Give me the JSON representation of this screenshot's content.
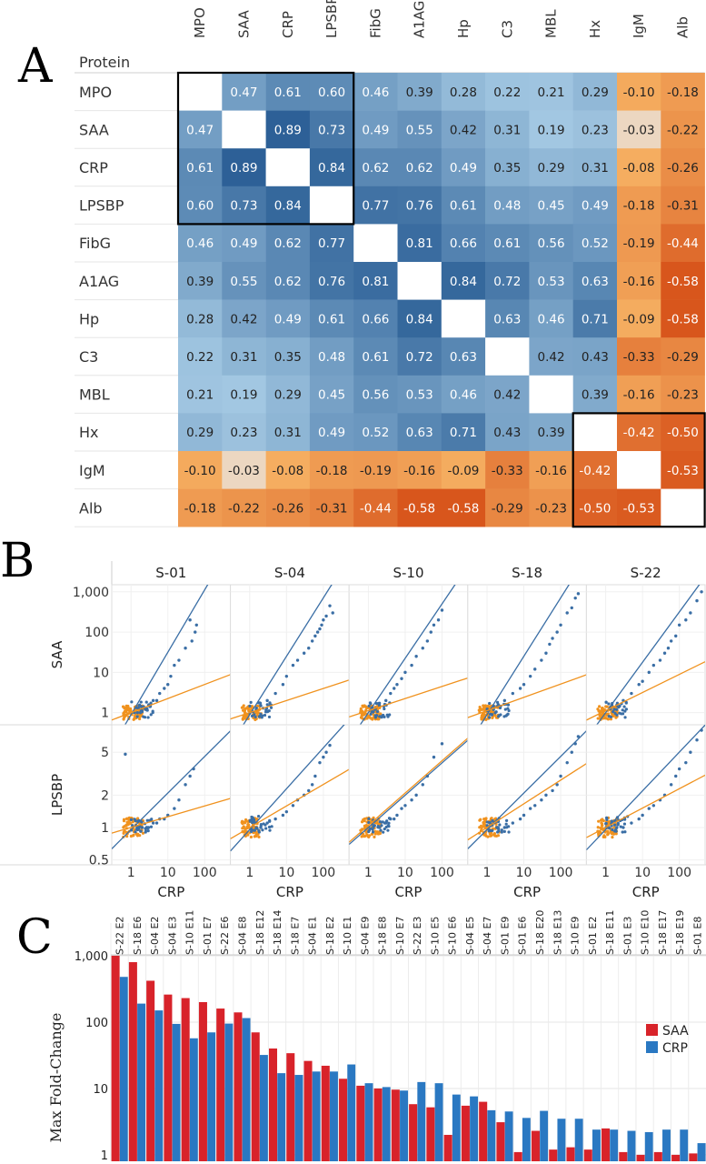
{
  "panels": [
    "A",
    "B",
    "C"
  ],
  "chart_data": [
    {
      "type": "heatmap",
      "panel": "A",
      "row_header": "Protein",
      "columns": [
        "MPO",
        "SAA",
        "CRP",
        "LPSBP",
        "FibG",
        "A1AG",
        "Hp",
        "C3",
        "MBL",
        "Hx",
        "IgM",
        "Alb"
      ],
      "rows": [
        "MPO",
        "SAA",
        "CRP",
        "LPSBP",
        "FibG",
        "A1AG",
        "Hp",
        "C3",
        "MBL",
        "Hx",
        "IgM",
        "Alb"
      ],
      "values": [
        [
          null,
          "0.47",
          "0.61",
          "0.60",
          "0.46",
          "0.39",
          "0.28",
          "0.22",
          "0.21",
          "0.29",
          "-0.10",
          "-0.18"
        ],
        [
          "0.47",
          null,
          "0.89",
          "0.73",
          "0.49",
          "0.55",
          "0.42",
          "0.31",
          "0.19",
          "0.23",
          "-0.03",
          "-0.22"
        ],
        [
          "0.61",
          "0.89",
          null,
          "0.84",
          "0.62",
          "0.62",
          "0.49",
          "0.35",
          "0.29",
          "0.31",
          "-0.08",
          "-0.26"
        ],
        [
          "0.60",
          "0.73",
          "0.84",
          null,
          "0.77",
          "0.76",
          "0.61",
          "0.48",
          "0.45",
          "0.49",
          "-0.18",
          "-0.31"
        ],
        [
          "0.46",
          "0.49",
          "0.62",
          "0.77",
          null,
          "0.81",
          "0.66",
          "0.61",
          "0.56",
          "0.52",
          "-0.19",
          "-0.44"
        ],
        [
          "0.39",
          "0.55",
          "0.62",
          "0.76",
          "0.81",
          null,
          "0.84",
          "0.72",
          "0.53",
          "0.63",
          "-0.16",
          "-0.58"
        ],
        [
          "0.28",
          "0.42",
          "0.49",
          "0.61",
          "0.66",
          "0.84",
          null,
          "0.63",
          "0.46",
          "0.71",
          "-0.09",
          "-0.58"
        ],
        [
          "0.22",
          "0.31",
          "0.35",
          "0.48",
          "0.61",
          "0.72",
          "0.63",
          null,
          "0.42",
          "0.43",
          "-0.33",
          "-0.29"
        ],
        [
          "0.21",
          "0.19",
          "0.29",
          "0.45",
          "0.56",
          "0.53",
          "0.46",
          "0.42",
          null,
          "0.39",
          "-0.16",
          "-0.23"
        ],
        [
          "0.29",
          "0.23",
          "0.31",
          "0.49",
          "0.52",
          "0.63",
          "0.71",
          "0.43",
          "0.39",
          null,
          "-0.42",
          "-0.50"
        ],
        [
          "-0.10",
          "-0.03",
          "-0.08",
          "-0.18",
          "-0.19",
          "-0.16",
          "-0.09",
          "-0.33",
          "-0.16",
          "-0.42",
          null,
          "-0.53"
        ],
        [
          "-0.18",
          "-0.22",
          "-0.26",
          "-0.31",
          "-0.44",
          "-0.58",
          "-0.58",
          "-0.29",
          "-0.23",
          "-0.50",
          "-0.53",
          null
        ]
      ],
      "highlight_blocks": [
        {
          "from": 0,
          "to": 3
        },
        {
          "from": 9,
          "to": 11
        }
      ],
      "colors": {
        "positive": "#2b5f96",
        "negative": "#d8561c",
        "neutral": "#f3e8dc",
        "box": "#000000"
      }
    },
    {
      "type": "scatter",
      "panel": "B",
      "xlabel": "CRP",
      "facets": [
        "S-01",
        "S-04",
        "S-10",
        "S-18",
        "S-22"
      ],
      "rows": [
        {
          "ylabel": "SAA",
          "scale": "log",
          "ylim": [
            0.5,
            1500
          ],
          "yticks": [
            "1",
            "10",
            "100",
            "1,000"
          ],
          "ytick_values": [
            1,
            10,
            100,
            1000
          ]
        },
        {
          "ylabel": "LPSBP",
          "scale": "log",
          "ylim": [
            0.45,
            9
          ],
          "yticks": [
            "0.5",
            "1",
            "2",
            "5"
          ],
          "ytick_values": [
            0.5,
            1,
            2,
            5
          ]
        }
      ],
      "x_scale": "log",
      "xlim": [
        0.3,
        500
      ],
      "xticks": [
        "1",
        "10",
        "100"
      ],
      "xtick_values": [
        1,
        10,
        100
      ],
      "series": [
        {
          "color": "#3a6ea5",
          "fits": [
            {
              "facet": "S-01",
              "row": 0,
              "slope": 1.55,
              "intercept": -0.05
            },
            {
              "facet": "S-04",
              "row": 0,
              "slope": 1.45,
              "intercept": -0.05
            },
            {
              "facet": "S-10",
              "row": 0,
              "slope": 1.35,
              "intercept": 0.0
            },
            {
              "facet": "S-18",
              "row": 0,
              "slope": 1.45,
              "intercept": -0.05
            },
            {
              "facet": "S-22",
              "row": 0,
              "slope": 1.25,
              "intercept": 0.0
            },
            {
              "facet": "S-01",
              "row": 1,
              "slope": 0.34,
              "intercept": -0.02
            },
            {
              "facet": "S-04",
              "row": 1,
              "slope": 0.38,
              "intercept": -0.02
            },
            {
              "facet": "S-10",
              "row": 1,
              "slope": 0.3,
              "intercept": 0.0
            },
            {
              "facet": "S-18",
              "row": 1,
              "slope": 0.34,
              "intercept": -0.02
            },
            {
              "facet": "S-22",
              "row": 1,
              "slope": 0.36,
              "intercept": -0.02
            }
          ]
        },
        {
          "color": "#f0921e",
          "fits": [
            {
              "facet": "S-01",
              "row": 0,
              "slope": 0.35,
              "intercept": 0.0
            },
            {
              "facet": "S-04",
              "row": 0,
              "slope": 0.3,
              "intercept": 0.0
            },
            {
              "facet": "S-10",
              "row": 0,
              "slope": 0.3,
              "intercept": 0.05
            },
            {
              "facet": "S-18",
              "row": 0,
              "slope": 0.33,
              "intercept": 0.05
            },
            {
              "facet": "S-22",
              "row": 0,
              "slope": 0.45,
              "intercept": 0.05
            },
            {
              "facet": "S-01",
              "row": 1,
              "slope": 0.1,
              "intercept": 0.0
            },
            {
              "facet": "S-04",
              "row": 1,
              "slope": 0.2,
              "intercept": 0.0
            },
            {
              "facet": "S-10",
              "row": 1,
              "slope": 0.3,
              "intercept": 0.02
            },
            {
              "facet": "S-18",
              "row": 1,
              "slope": 0.22,
              "intercept": 0.0
            },
            {
              "facet": "S-22",
              "row": 1,
              "slope": 0.18,
              "intercept": 0.0
            }
          ]
        }
      ],
      "points": [
        {
          "facet": "S-01",
          "row": 0,
          "x": [
            40,
            55,
            60,
            45,
            30,
            20,
            15,
            12,
            10,
            8,
            6,
            5,
            4,
            3,
            2.5,
            2,
            1.8,
            1.5
          ],
          "y": [
            200,
            100,
            150,
            60,
            40,
            20,
            15,
            8,
            5,
            4,
            3,
            2,
            2,
            1.5,
            1.2,
            1.1,
            1,
            1
          ]
        },
        {
          "facet": "S-04",
          "row": 0,
          "x": [
            150,
            180,
            120,
            100,
            90,
            80,
            70,
            60,
            50,
            40,
            30,
            20,
            15,
            10,
            8,
            5,
            3,
            2,
            1.5
          ],
          "y": [
            450,
            300,
            250,
            200,
            150,
            120,
            100,
            80,
            60,
            40,
            30,
            20,
            15,
            8,
            5,
            3,
            2,
            1.5,
            1.2
          ]
        },
        {
          "facet": "S-10",
          "row": 0,
          "x": [
            100,
            80,
            60,
            50,
            40,
            30,
            20,
            15,
            10,
            8,
            6,
            5,
            4,
            3,
            2,
            1.5
          ],
          "y": [
            350,
            200,
            150,
            100,
            60,
            40,
            25,
            15,
            10,
            7,
            5,
            4,
            3,
            2,
            1.5,
            1.2
          ]
        },
        {
          "facet": "S-18",
          "row": 0,
          "x": [
            300,
            250,
            200,
            150,
            100,
            80,
            60,
            50,
            40,
            30,
            20,
            15,
            10,
            8,
            5,
            3,
            2,
            1.5
          ],
          "y": [
            900,
            700,
            400,
            300,
            150,
            100,
            70,
            50,
            30,
            20,
            12,
            8,
            5,
            4,
            3,
            2,
            1.5,
            1.2
          ]
        },
        {
          "facet": "S-22",
          "row": 0,
          "x": [
            400,
            300,
            200,
            150,
            100,
            80,
            60,
            50,
            40,
            30,
            20,
            15,
            10,
            8,
            5,
            3,
            2
          ],
          "y": [
            1000,
            600,
            300,
            200,
            150,
            80,
            60,
            40,
            30,
            20,
            15,
            10,
            6,
            5,
            3,
            2,
            1.5
          ]
        },
        {
          "facet": "S-01",
          "row": 1,
          "x": [
            50,
            40,
            30,
            20,
            15,
            10,
            8,
            6,
            5,
            4,
            3,
            2,
            1.5,
            0.7
          ],
          "y": [
            3.5,
            3,
            2.5,
            1.8,
            1.5,
            1.3,
            1.2,
            1.2,
            1.1,
            1.1,
            1.0,
            1.0,
            1.0,
            4.8
          ]
        },
        {
          "facet": "S-04",
          "row": 1,
          "x": [
            150,
            120,
            100,
            80,
            60,
            50,
            40,
            30,
            20,
            15,
            10,
            8,
            5,
            3,
            2
          ],
          "y": [
            5.8,
            5,
            4.5,
            4,
            3,
            2.5,
            2.2,
            2,
            1.8,
            1.6,
            1.4,
            1.3,
            1.2,
            1.1,
            1.0
          ]
        },
        {
          "facet": "S-10",
          "row": 1,
          "x": [
            100,
            60,
            40,
            30,
            20,
            15,
            10,
            8,
            6,
            5,
            4,
            3,
            2
          ],
          "y": [
            6,
            4.5,
            3,
            2.5,
            2,
            1.8,
            1.6,
            1.5,
            1.3,
            1.2,
            1.2,
            1.1,
            1.0
          ]
        },
        {
          "facet": "S-18",
          "row": 1,
          "x": [
            300,
            250,
            200,
            150,
            100,
            80,
            60,
            40,
            30,
            20,
            15,
            10,
            8,
            5,
            3,
            2
          ],
          "y": [
            7,
            6,
            5,
            4,
            3,
            2.5,
            2.2,
            2,
            1.8,
            1.6,
            1.5,
            1.3,
            1.2,
            1.1,
            1.0,
            1.0
          ]
        },
        {
          "facet": "S-22",
          "row": 1,
          "x": [
            400,
            300,
            200,
            150,
            100,
            80,
            60,
            40,
            30,
            20,
            15,
            10,
            8,
            5,
            3,
            2
          ],
          "y": [
            8,
            6.5,
            5,
            4,
            3.5,
            3,
            2.5,
            2,
            1.8,
            1.6,
            1.5,
            1.3,
            1.2,
            1.1,
            1.0,
            1.0
          ]
        }
      ]
    },
    {
      "type": "bar",
      "panel": "C",
      "ylabel": "Max Fold-Change",
      "y_scale": "log",
      "ylim": [
        0.8,
        2000
      ],
      "yticks": [
        "1",
        "10",
        "100",
        "1,000"
      ],
      "ytick_values": [
        1,
        10,
        100,
        1000
      ],
      "categories": [
        "S-22 E2",
        "S-18 E6",
        "S-04 E2",
        "S-04 E3",
        "S-10 E11",
        "S-01 E7",
        "S-22 E6",
        "S-04 E8",
        "S-18 E12",
        "S-18 E14",
        "S-18 E7",
        "S-04 E1",
        "S-18 E2",
        "S-10 E1",
        "S-04 E9",
        "S-18 E8",
        "S-10 E7",
        "S-22 E3",
        "S-10 E5",
        "S-10 E6",
        "S-04 E5",
        "S-04 E7",
        "S-01 E9",
        "S-01 E6",
        "S-18 E20",
        "S-18 E13",
        "S-10 E9",
        "S-01 E2",
        "S-18 E11",
        "S-01 E3",
        "S-10 E10",
        "S-18 E17",
        "S-18 E19",
        "S-01 E8"
      ],
      "series": [
        {
          "name": "SAA",
          "color": "#d8232a",
          "values": [
            1000,
            800,
            420,
            260,
            230,
            200,
            160,
            140,
            70,
            40,
            34,
            26,
            22,
            14,
            11,
            10,
            9.6,
            5.8,
            5.2,
            2.0,
            5.5,
            6.3,
            3.1,
            1.1,
            2.3,
            1.2,
            1.3,
            1.2,
            2.5,
            1.1,
            1.0,
            1.1,
            1.0,
            1.05
          ]
        },
        {
          "name": "CRP",
          "color": "#2a78c2",
          "values": [
            480,
            190,
            150,
            94,
            57,
            70,
            95,
            115,
            32,
            17,
            16,
            18,
            18,
            23,
            12,
            10.5,
            9.3,
            12.5,
            12,
            8.1,
            7.6,
            4.7,
            4.5,
            3.6,
            4.6,
            3.5,
            3.5,
            2.4,
            2.4,
            2.3,
            2.2,
            2.4,
            2.4,
            1.5
          ]
        }
      ],
      "legend_position": "top-right"
    }
  ]
}
